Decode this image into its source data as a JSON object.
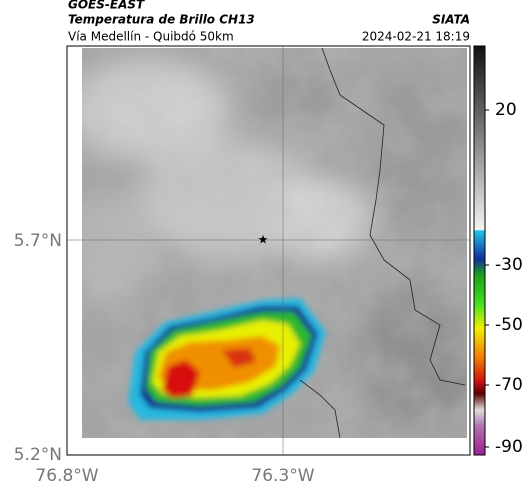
{
  "header": {
    "satellite": "GOES-EAST",
    "product": "Temperatura de Brillo CH13",
    "source": "SIATA",
    "route": "Vía Medellín - Quibdó 50km",
    "timestamp": "2024-02-21 18:19"
  },
  "map": {
    "lat_labels": [
      "5.7°N",
      "5.2°N"
    ],
    "lon_labels": [
      "76.8°W",
      "76.3°W"
    ]
  },
  "colorbar": {
    "tick_labels": [
      20,
      -30,
      -50,
      -70,
      -90
    ]
  }
}
